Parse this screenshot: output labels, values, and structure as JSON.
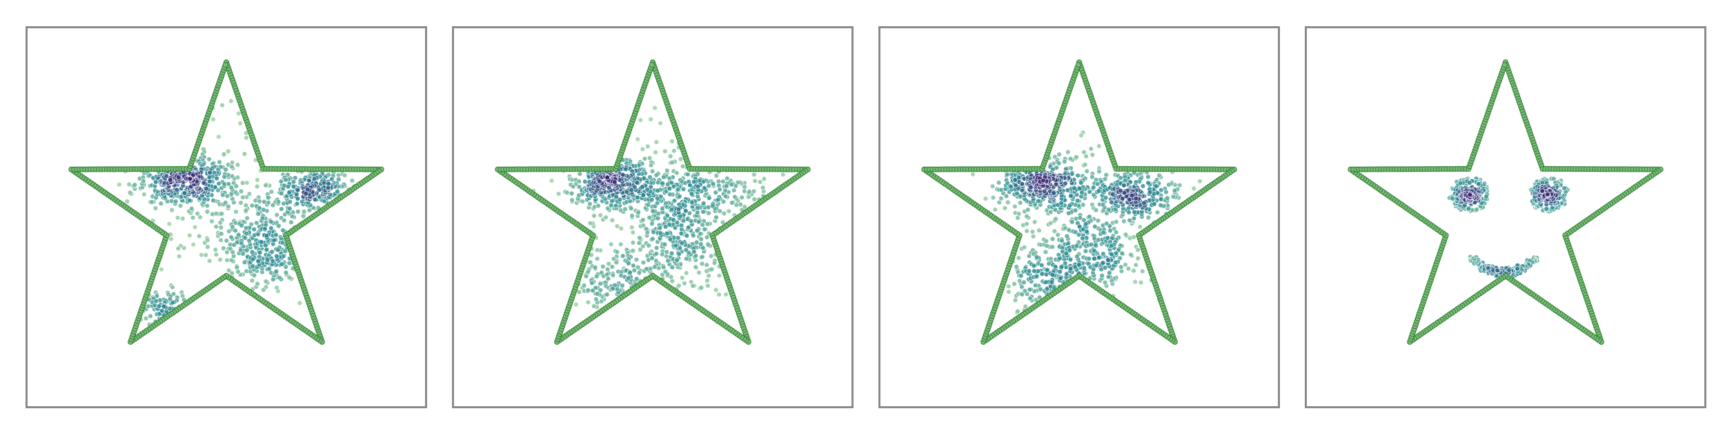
{
  "colors": {
    "background": "#ffffff",
    "frame": "#8a8a8a",
    "outline_fill": "#7bbd78",
    "outline_edge": "#2f7d32",
    "density_low": "#a6d8a4",
    "density_mid": "#2b8c94",
    "density_high": "#3a1d72"
  },
  "chart_data": [
    {
      "type": "scatter",
      "panel": 1,
      "colormap": "viridis-like",
      "xlim": [
        -1,
        1
      ],
      "ylim": [
        -1,
        1
      ],
      "grid": false,
      "axes_ticks": false,
      "outline": {
        "shape": "five-pointed star",
        "marker": "dots",
        "vertices": [
          [
            0.0,
            0.82
          ],
          [
            0.186,
            0.256
          ],
          [
            0.78,
            0.253
          ],
          [
            0.3,
            -0.096
          ],
          [
            0.482,
            -0.66
          ],
          [
            0.0,
            -0.31
          ],
          [
            -0.482,
            -0.66
          ],
          [
            -0.3,
            -0.096
          ],
          [
            -0.78,
            0.253
          ],
          [
            -0.186,
            0.256
          ]
        ]
      },
      "clusters": [
        {
          "center": [
            -0.21,
            0.2
          ],
          "spread": [
            0.12,
            0.07
          ],
          "count": 360,
          "density": "highest"
        },
        {
          "center": [
            0.44,
            0.14
          ],
          "spread": [
            0.12,
            0.06
          ],
          "count": 240,
          "density": "high"
        },
        {
          "center": [
            0.19,
            -0.15
          ],
          "spread": [
            0.12,
            0.1
          ],
          "count": 280,
          "density": "high"
        },
        {
          "center": [
            -0.29,
            -0.5
          ],
          "spread": [
            0.08,
            0.06
          ],
          "count": 80,
          "density": "medium"
        },
        {
          "center": [
            0.0,
            0.05
          ],
          "spread": [
            0.28,
            0.28
          ],
          "count": 140,
          "density": "low"
        }
      ]
    },
    {
      "type": "scatter",
      "panel": 2,
      "colormap": "viridis-like",
      "xlim": [
        -1,
        1
      ],
      "ylim": [
        -1,
        1
      ],
      "grid": false,
      "axes_ticks": false,
      "outline": {
        "shape": "five-pointed star",
        "marker": "dots",
        "vertices": [
          [
            0.0,
            0.82
          ],
          [
            0.186,
            0.256
          ],
          [
            0.78,
            0.253
          ],
          [
            0.3,
            -0.096
          ],
          [
            0.482,
            -0.66
          ],
          [
            0.0,
            -0.31
          ],
          [
            -0.482,
            -0.66
          ],
          [
            -0.3,
            -0.096
          ],
          [
            -0.78,
            0.253
          ],
          [
            -0.186,
            0.256
          ]
        ]
      },
      "clusters": [
        {
          "center": [
            -0.19,
            0.19
          ],
          "spread": [
            0.12,
            0.07
          ],
          "count": 340,
          "density": "highest"
        },
        {
          "center": [
            0.25,
            0.12
          ],
          "spread": [
            0.2,
            0.08
          ],
          "count": 240,
          "density": "high"
        },
        {
          "center": [
            0.13,
            -0.13
          ],
          "spread": [
            0.13,
            0.11
          ],
          "count": 240,
          "density": "high"
        },
        {
          "center": [
            -0.16,
            -0.35
          ],
          "spread": [
            0.12,
            0.09
          ],
          "count": 120,
          "density": "medium"
        },
        {
          "center": [
            0.0,
            0.05
          ],
          "spread": [
            0.28,
            0.3
          ],
          "count": 180,
          "density": "low"
        }
      ]
    },
    {
      "type": "scatter",
      "panel": 3,
      "colormap": "viridis-like",
      "xlim": [
        -1,
        1
      ],
      "ylim": [
        -1,
        1
      ],
      "grid": false,
      "axes_ticks": false,
      "outline": {
        "shape": "five-pointed star",
        "marker": "dots",
        "vertices": [
          [
            0.0,
            0.82
          ],
          [
            0.186,
            0.256
          ],
          [
            0.78,
            0.253
          ],
          [
            0.3,
            -0.096
          ],
          [
            0.482,
            -0.66
          ],
          [
            0.0,
            -0.31
          ],
          [
            -0.482,
            -0.66
          ],
          [
            -0.3,
            -0.096
          ],
          [
            -0.78,
            0.253
          ],
          [
            -0.186,
            0.256
          ]
        ]
      },
      "clusters": [
        {
          "center": [
            -0.18,
            0.17
          ],
          "spread": [
            0.1,
            0.07
          ],
          "count": 320,
          "density": "highest"
        },
        {
          "center": [
            0.27,
            0.12
          ],
          "spread": [
            0.12,
            0.07
          ],
          "count": 260,
          "density": "high"
        },
        {
          "center": [
            0.06,
            -0.17
          ],
          "spread": [
            0.13,
            0.1
          ],
          "count": 240,
          "density": "high"
        },
        {
          "center": [
            -0.15,
            -0.33
          ],
          "spread": [
            0.12,
            0.09
          ],
          "count": 160,
          "density": "medium"
        },
        {
          "center": [
            0.0,
            0.1
          ],
          "spread": [
            0.25,
            0.25
          ],
          "count": 140,
          "density": "low"
        }
      ]
    },
    {
      "type": "scatter",
      "panel": 4,
      "colormap": "viridis-like",
      "xlim": [
        -1,
        1
      ],
      "ylim": [
        -1,
        1
      ],
      "grid": false,
      "axes_ticks": false,
      "outline": {
        "shape": "five-pointed star",
        "marker": "dots",
        "vertices": [
          [
            0.0,
            0.82
          ],
          [
            0.186,
            0.256
          ],
          [
            0.78,
            0.253
          ],
          [
            0.3,
            -0.096
          ],
          [
            0.482,
            -0.66
          ],
          [
            0.0,
            -0.31
          ],
          [
            -0.482,
            -0.66
          ],
          [
            -0.3,
            -0.096
          ],
          [
            -0.78,
            0.253
          ],
          [
            -0.186,
            0.256
          ]
        ]
      },
      "clusters": [
        {
          "center": [
            -0.18,
            0.12
          ],
          "spread": [
            0.035,
            0.03
          ],
          "count": 130,
          "density": "highest"
        },
        {
          "center": [
            0.22,
            0.12
          ],
          "spread": [
            0.035,
            0.03
          ],
          "count": 130,
          "density": "highest"
        }
      ],
      "rings": [
        {
          "center": [
            -0.18,
            0.12
          ],
          "radius": 0.085,
          "count": 70,
          "density": "low"
        },
        {
          "center": [
            0.22,
            0.12
          ],
          "radius": 0.085,
          "count": 70,
          "density": "low"
        }
      ],
      "arcs": [
        {
          "shape": "smile",
          "x_range": [
            -0.18,
            0.16
          ],
          "y_at_ends": -0.22,
          "y_at_middle": -0.29,
          "count": 160,
          "density": "medium"
        }
      ]
    }
  ]
}
